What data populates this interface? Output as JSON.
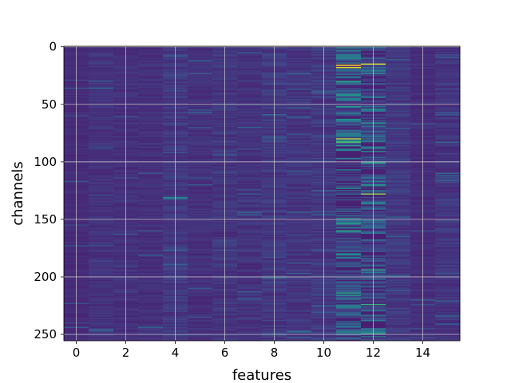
{
  "chart_data": {
    "type": "heatmap",
    "title": "",
    "xlabel": "features",
    "ylabel": "channels",
    "x_ticks": [
      0,
      2,
      4,
      6,
      8,
      10,
      12,
      14
    ],
    "y_ticks": [
      0,
      50,
      100,
      150,
      200,
      250
    ],
    "xlim": [
      -0.5,
      15.5
    ],
    "ylim": [
      255.5,
      -0.5
    ],
    "y_axis_inverted": true,
    "grid": true,
    "colormap": "viridis",
    "n_features": 16,
    "n_channels": 256,
    "column_intensity_profile": [
      0.04,
      0.07,
      0.06,
      0.06,
      0.09,
      0.06,
      0.08,
      0.07,
      0.09,
      0.08,
      0.1,
      0.42,
      0.4,
      0.09,
      0.05,
      0.08
    ],
    "highlight_cells": [
      {
        "feature": 11,
        "channel": 16,
        "value": 1.0
      },
      {
        "feature": 11,
        "channel": 18,
        "value": 0.95
      },
      {
        "feature": 12,
        "channel": 15,
        "value": 0.95
      },
      {
        "feature": 11,
        "channel": 80,
        "value": 0.9
      },
      {
        "feature": 11,
        "channel": 83,
        "value": 0.75
      },
      {
        "feature": 12,
        "channel": 128,
        "value": 0.85
      },
      {
        "feature": 12,
        "channel": 224,
        "value": 0.7
      },
      {
        "feature": 4,
        "channel": 131,
        "value": 0.55
      },
      {
        "feature": 11,
        "channel": 30,
        "value": 0.65
      },
      {
        "feature": 11,
        "channel": 52,
        "value": 0.6
      },
      {
        "feature": 12,
        "channel": 136,
        "value": 0.55
      },
      {
        "feature": 12,
        "channel": 88,
        "value": 0.5
      }
    ]
  }
}
